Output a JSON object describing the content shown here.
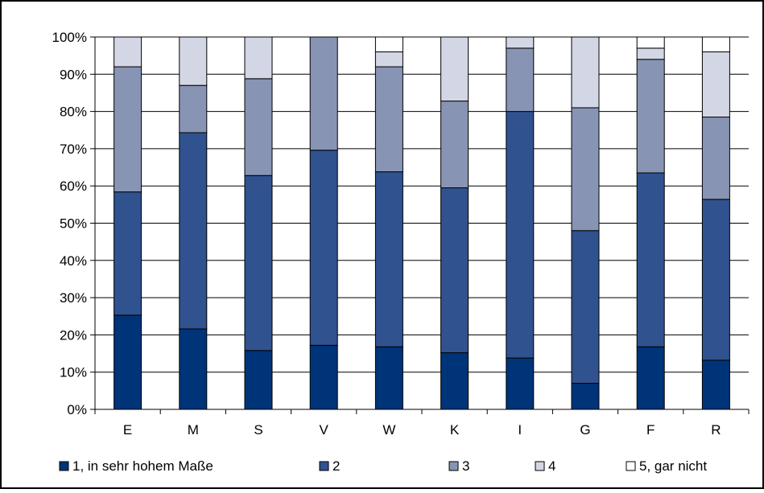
{
  "chart_data": {
    "type": "bar",
    "stacked": "percent",
    "categories": [
      "E",
      "M",
      "S",
      "V",
      "W",
      "K",
      "I",
      "G",
      "F",
      "R"
    ],
    "series": [
      {
        "name": "1, in sehr hohem Maße",
        "color": "#003478",
        "values": [
          25.3,
          21.6,
          15.8,
          17.2,
          16.8,
          15.2,
          13.8,
          7.0,
          16.8,
          13.2
        ]
      },
      {
        "name": "2",
        "color": "#30528f",
        "values": [
          33.1,
          52.7,
          47.0,
          52.4,
          47.0,
          44.3,
          66.2,
          41.0,
          46.7,
          43.2
        ]
      },
      {
        "name": "3",
        "color": "#8894b4",
        "values": [
          33.6,
          12.7,
          26.0,
          30.4,
          28.2,
          23.3,
          17.0,
          33.0,
          30.5,
          22.1
        ]
      },
      {
        "name": "4",
        "color": "#d3d6e5",
        "values": [
          8.0,
          13.0,
          11.2,
          0.0,
          4.0,
          17.2,
          3.0,
          19.0,
          3.0,
          17.5
        ]
      },
      {
        "name": "5, gar nicht",
        "color": "#ffffff",
        "values": [
          0.0,
          0.0,
          0.0,
          0.0,
          4.0,
          0.0,
          0.0,
          0.0,
          3.0,
          4.0
        ]
      }
    ],
    "ylim": [
      0,
      100
    ],
    "yticks": [
      "0%",
      "10%",
      "20%",
      "30%",
      "40%",
      "50%",
      "60%",
      "70%",
      "80%",
      "90%",
      "100%"
    ],
    "grid": true,
    "legend_position": "bottom",
    "title": "",
    "xlabel": "",
    "ylabel": ""
  }
}
